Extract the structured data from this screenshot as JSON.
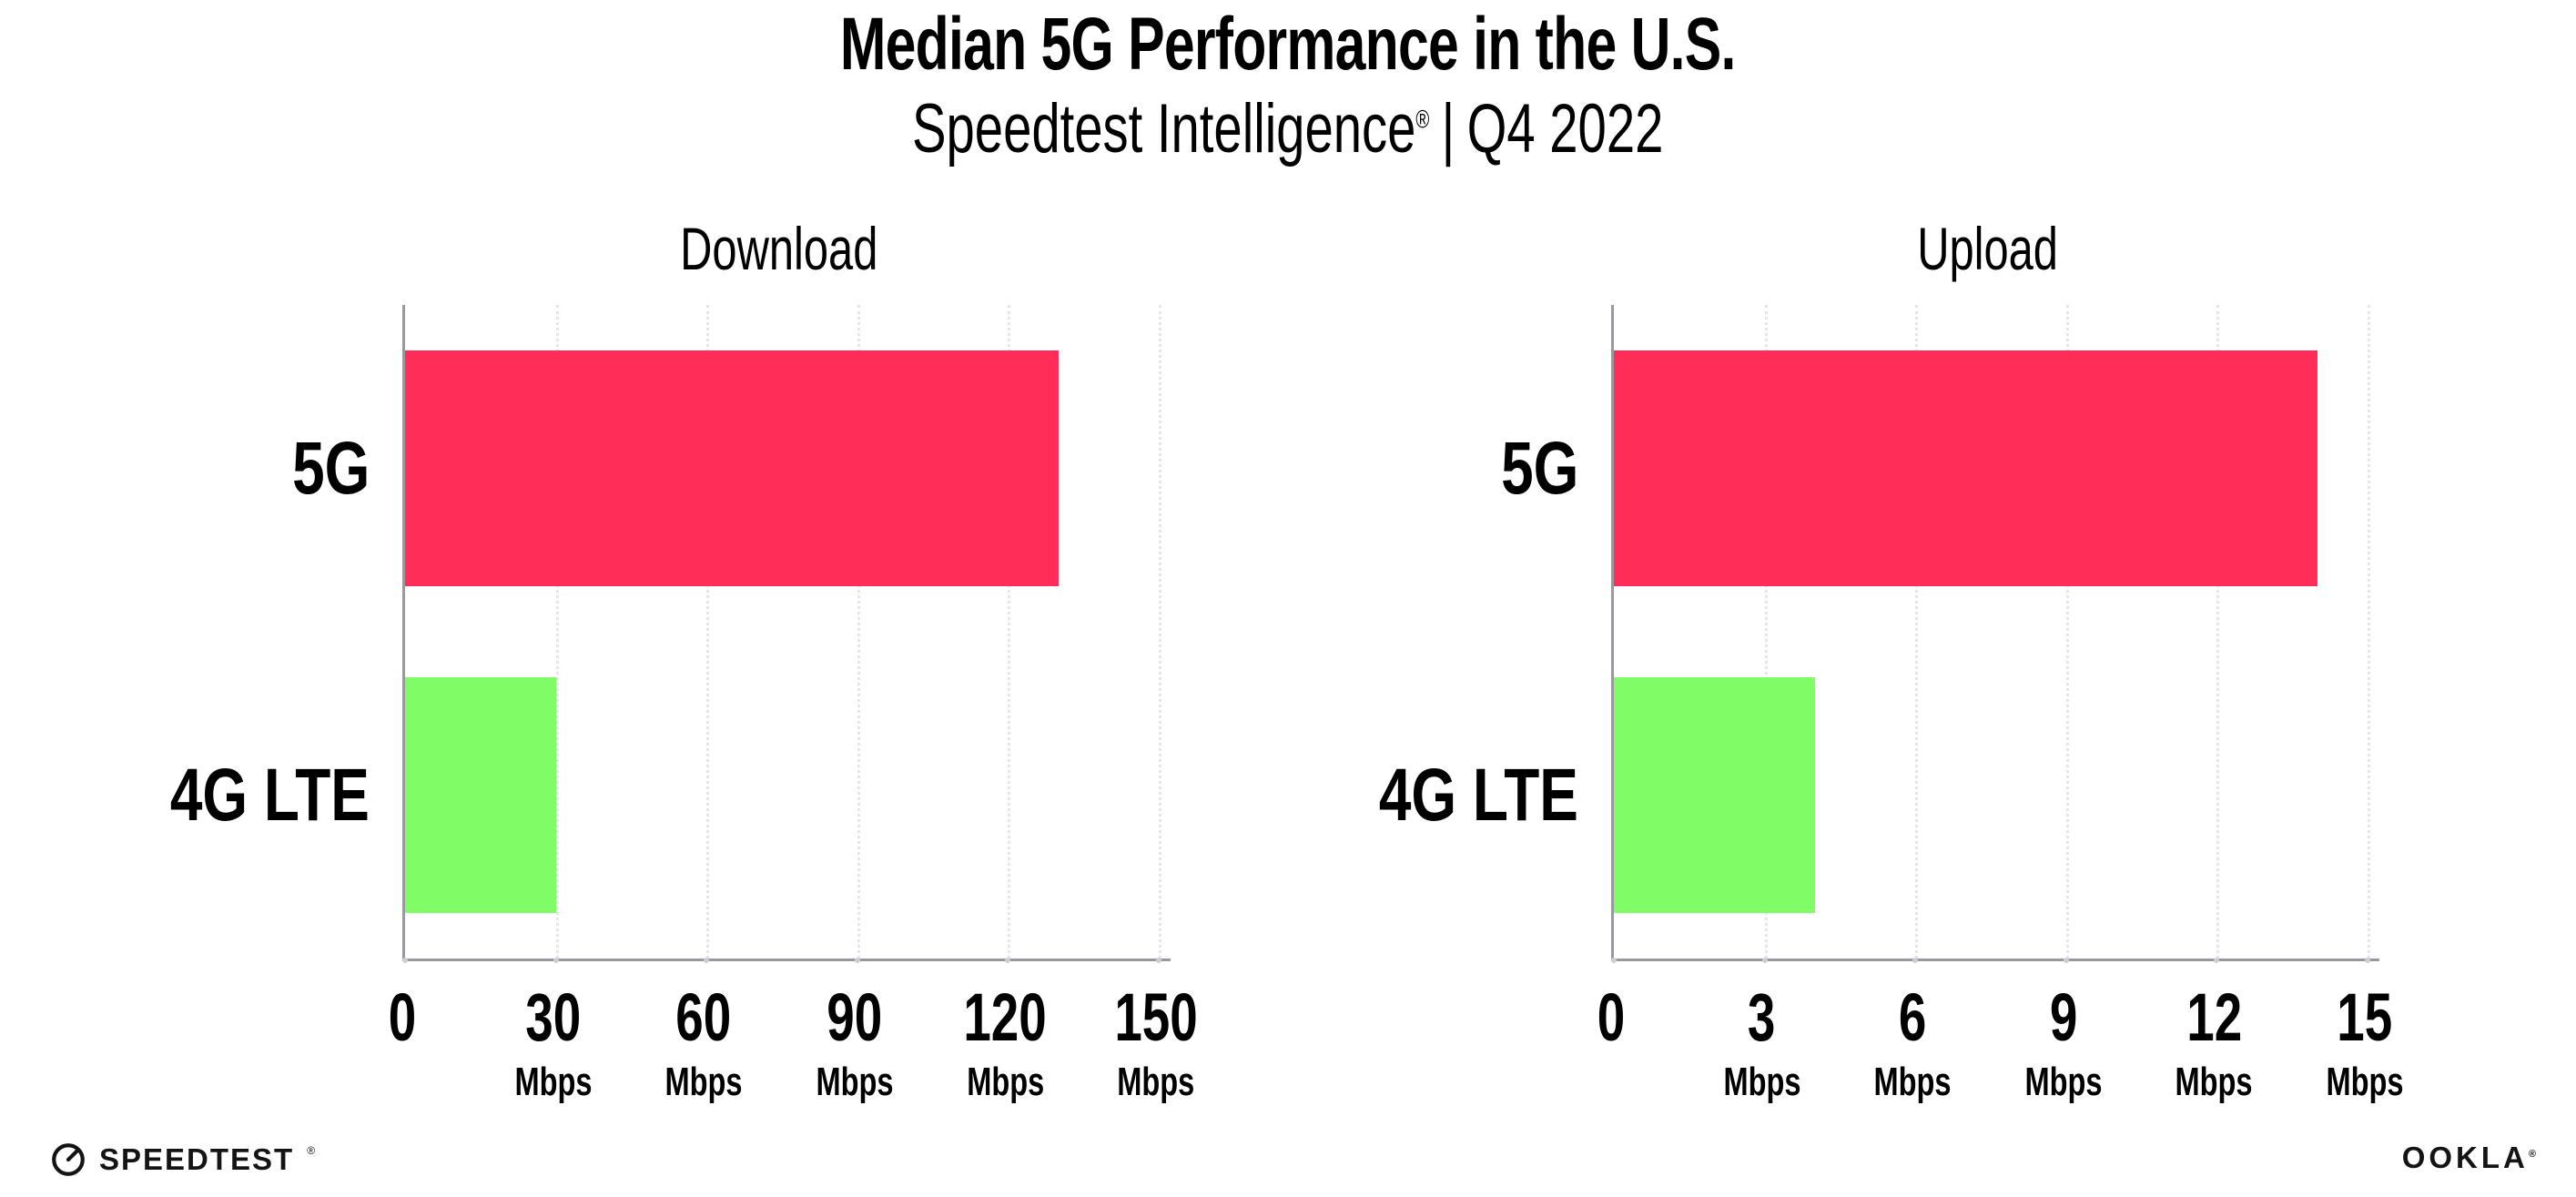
{
  "header": {
    "title": "Median 5G Performance in the U.S.",
    "subtitle": {
      "brand": "Speedtest Intelligence",
      "mark": "®",
      "separator": "|",
      "period": "Q4 2022"
    }
  },
  "chart_data": [
    {
      "type": "bar",
      "orientation": "horizontal",
      "title": "Download",
      "categories": [
        "5G",
        "4G LTE"
      ],
      "values": [
        130,
        30
      ],
      "unit": "Mbps",
      "xlim": [
        0,
        150
      ],
      "xticks": [
        0,
        30,
        60,
        90,
        120,
        150
      ],
      "bar_colors": [
        "#FF2D58",
        "#80FC66"
      ],
      "grid": "vertical-dotted",
      "legend": "none"
    },
    {
      "type": "bar",
      "orientation": "horizontal",
      "title": "Upload",
      "categories": [
        "5G",
        "4G LTE"
      ],
      "values": [
        14,
        4
      ],
      "unit": "Mbps",
      "xlim": [
        0,
        15
      ],
      "xticks": [
        0,
        3,
        6,
        9,
        12,
        15
      ],
      "bar_colors": [
        "#FF2D58",
        "#80FC66"
      ],
      "grid": "vertical-dotted",
      "legend": "none"
    }
  ],
  "footer": {
    "speedtest": "SPEEDTEST",
    "speedtest_mark": "®",
    "ookla": "OOKLA",
    "ookla_mark": "®"
  },
  "colors": {
    "bar_5g": "#FF2D58",
    "bar_4g_lte": "#80FC66",
    "axis": "#98989E",
    "gridline": "#E4E4EE",
    "text": "#000000",
    "background": "#FFFFFF"
  }
}
